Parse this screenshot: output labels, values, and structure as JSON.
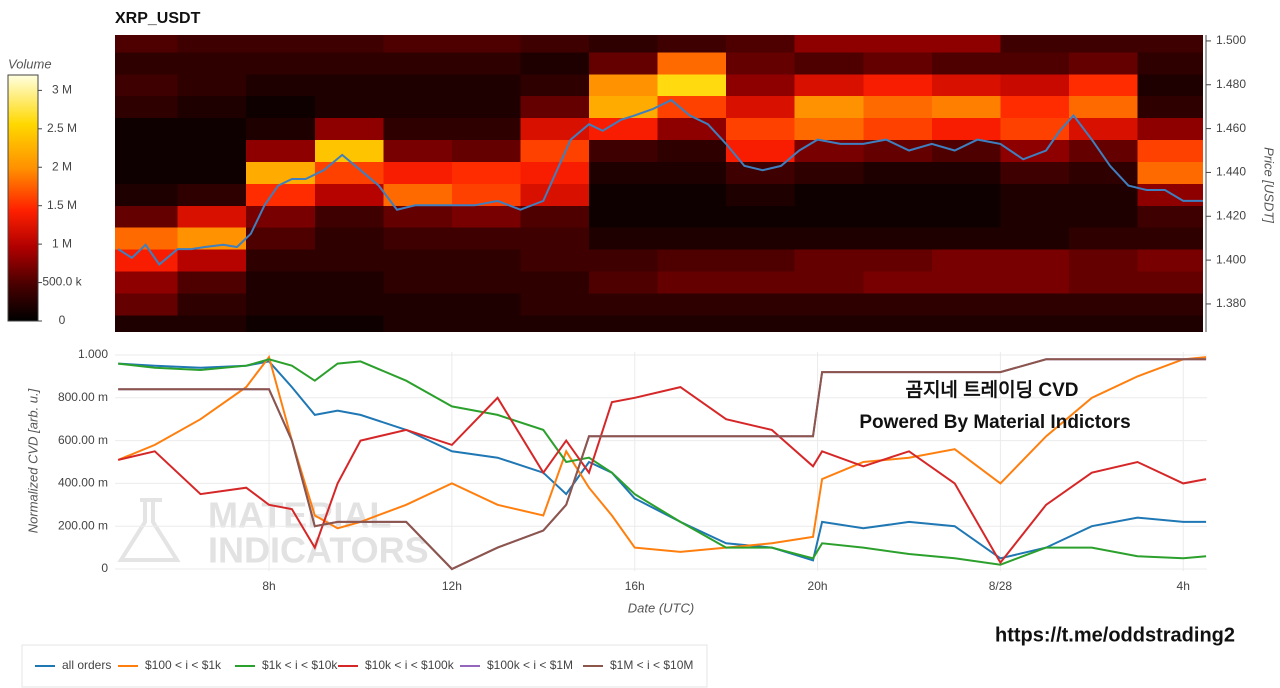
{
  "chart_data": [
    {
      "type": "heatmap",
      "title": "XRP_USDT",
      "y_title": "Price [USDT]",
      "colorbar_title": "Volume",
      "xlim": [
        4.63,
        28.52
      ],
      "ylim": [
        1.3672,
        1.5027
      ],
      "yticks": [
        {
          "value": 1.38,
          "label": "1.380"
        },
        {
          "value": 1.4,
          "label": "1.400"
        },
        {
          "value": 1.42,
          "label": "1.420"
        },
        {
          "value": 1.44,
          "label": "1.440"
        },
        {
          "value": 1.46,
          "label": "1.460"
        },
        {
          "value": 1.48,
          "label": "1.480"
        },
        {
          "value": 1.5,
          "label": "1.500"
        }
      ],
      "zlim": [
        0,
        3200000
      ],
      "zticks": [
        {
          "value": 0,
          "label": "0"
        },
        {
          "value": 500000,
          "label": "500.0 k"
        },
        {
          "value": 1000000,
          "label": "1 M"
        },
        {
          "value": 1500000,
          "label": "1.5 M"
        },
        {
          "value": 2000000,
          "label": "2 M"
        },
        {
          "value": 2500000,
          "label": "2.5 M"
        },
        {
          "value": 3000000,
          "label": "3 M"
        }
      ],
      "colorscale": [
        [
          0,
          "#000000"
        ],
        [
          0.15,
          "#4a0000"
        ],
        [
          0.3,
          "#b00000"
        ],
        [
          0.45,
          "#ff2000"
        ],
        [
          0.62,
          "#ff9000"
        ],
        [
          0.8,
          "#ffd800"
        ],
        [
          1,
          "#ffffe0"
        ]
      ],
      "xbins": [
        4.5,
        6,
        7.5,
        9,
        10.5,
        12,
        13.5,
        15,
        16.5,
        18,
        19.5,
        21,
        22.5,
        24,
        25.5,
        27,
        28.5
      ],
      "ybins": [
        1.365,
        1.375,
        1.385,
        1.395,
        1.405,
        1.415,
        1.425,
        1.435,
        1.445,
        1.455,
        1.465,
        1.475,
        1.485,
        1.495,
        1.505
      ],
      "z": [
        [
          200000.0,
          600000.0,
          800000.0,
          1400000.0,
          1800000.0,
          600000.0,
          200000.0,
          100000.0,
          100000.0,
          100000.0,
          300000.0,
          400000.0,
          300000.0,
          500000.0
        ],
        [
          200000.0,
          300000.0,
          500000.0,
          1000000.0,
          2000000.0,
          1200000.0,
          300000.0,
          100000.0,
          100000.0,
          100000.0,
          200000.0,
          300000.0,
          300000.0,
          400000.0
        ],
        [
          100000.0,
          200000.0,
          200000.0,
          300000.0,
          500000.0,
          700000.0,
          1500000.0,
          2200000.0,
          800000.0,
          200000.0,
          100000.0,
          200000.0,
          300000.0,
          400000.0
        ],
        [
          100000.0,
          200000.0,
          200000.0,
          300000.0,
          300000.0,
          400000.0,
          1000000.0,
          1600000.0,
          2400000.0,
          800000.0,
          200000.0,
          200000.0,
          300000.0,
          400000.0
        ],
        [
          200000.0,
          200000.0,
          300000.0,
          300000.0,
          400000.0,
          600000.0,
          1800000.0,
          1400000.0,
          700000.0,
          300000.0,
          200000.0,
          200000.0,
          300000.0,
          500000.0
        ],
        [
          200000.0,
          200000.0,
          300000.0,
          300000.0,
          400000.0,
          700000.0,
          1600000.0,
          1500000.0,
          600000.0,
          300000.0,
          200000.0,
          200000.0,
          300000.0,
          500000.0
        ],
        [
          200000.0,
          300000.0,
          300000.0,
          400000.0,
          400000.0,
          500000.0,
          1200000.0,
          1400000.0,
          1600000.0,
          1200000.0,
          600000.0,
          300000.0,
          200000.0,
          400000.0
        ],
        [
          200000.0,
          300000.0,
          500000.0,
          400000.0,
          200000.0,
          100000.0,
          100000.0,
          200000.0,
          400000.0,
          1400000.0,
          2200000.0,
          2000000.0,
          600000.0,
          300000.0
        ],
        [
          200000.0,
          300000.0,
          600000.0,
          500000.0,
          200000.0,
          100000.0,
          100000.0,
          200000.0,
          300000.0,
          800000.0,
          1600000.0,
          2600000.0,
          1800000.0,
          400000.0
        ],
        [
          200000.0,
          300000.0,
          600000.0,
          500000.0,
          200000.0,
          100000.0,
          200000.0,
          400000.0,
          1400000.0,
          1600000.0,
          1200000.0,
          800000.0,
          600000.0,
          500000.0
        ],
        [
          200000.0,
          300000.0,
          600000.0,
          600000.0,
          200000.0,
          100000.0,
          100000.0,
          300000.0,
          700000.0,
          1800000.0,
          2000000.0,
          1200000.0,
          500000.0,
          800000.0
        ],
        [
          200000.0,
          300000.0,
          700000.0,
          600000.0,
          200000.0,
          100000.0,
          100000.0,
          200000.0,
          600000.0,
          1600000.0,
          1800000.0,
          1400000.0,
          600000.0,
          800000.0
        ],
        [
          200000.0,
          300000.0,
          700000.0,
          700000.0,
          200000.0,
          100000.0,
          100000.0,
          200000.0,
          500000.0,
          1400000.0,
          1900000.0,
          1200000.0,
          500000.0,
          800000.0
        ],
        [
          200000.0,
          300000.0,
          700000.0,
          700000.0,
          200000.0,
          200000.0,
          200000.0,
          400000.0,
          800000.0,
          1600000.0,
          1500000.0,
          1100000.0,
          500000.0,
          400000.0
        ],
        [
          200000.0,
          300000.0,
          600000.0,
          600000.0,
          300000.0,
          200000.0,
          200000.0,
          300000.0,
          600000.0,
          1200000.0,
          1800000.0,
          1500000.0,
          600000.0,
          400000.0
        ],
        [
          200000.0,
          300000.0,
          600000.0,
          700000.0,
          300000.0,
          400000.0,
          800000.0,
          1800000.0,
          1600000.0,
          800000.0,
          300000.0,
          200000.0,
          300000.0,
          400000.0
        ]
      ],
      "price": {
        "color": "#3f7fbf",
        "x": [
          4.7,
          5,
          5.3,
          5.6,
          6,
          6.3,
          6.6,
          7,
          7.3,
          7.6,
          7.9,
          8.2,
          8.5,
          8.8,
          9.2,
          9.6,
          10,
          10.4,
          10.8,
          11.2,
          11.6,
          12,
          12.5,
          13,
          13.5,
          14,
          14.3,
          14.6,
          15,
          15.3,
          15.7,
          16,
          16.4,
          16.8,
          17.2,
          17.6,
          18,
          18.4,
          18.8,
          19.2,
          19.6,
          20,
          20.5,
          21,
          21.5,
          22,
          22.5,
          23,
          23.5,
          24,
          24.5,
          25,
          25.3,
          25.6,
          26,
          26.4,
          26.8,
          27.2,
          27.6,
          28,
          28.5
        ],
        "y": [
          1.405,
          1.401,
          1.407,
          1.398,
          1.405,
          1.405,
          1.406,
          1.407,
          1.406,
          1.412,
          1.425,
          1.434,
          1.437,
          1.437,
          1.441,
          1.448,
          1.441,
          1.434,
          1.423,
          1.425,
          1.425,
          1.425,
          1.425,
          1.427,
          1.423,
          1.427,
          1.441,
          1.455,
          1.462,
          1.459,
          1.464,
          1.466,
          1.469,
          1.473,
          1.466,
          1.462,
          1.453,
          1.443,
          1.441,
          1.443,
          1.45,
          1.455,
          1.453,
          1.453,
          1.455,
          1.45,
          1.453,
          1.45,
          1.455,
          1.453,
          1.446,
          1.45,
          1.459,
          1.466,
          1.455,
          1.443,
          1.434,
          1.432,
          1.432,
          1.427,
          1.427
        ]
      }
    },
    {
      "type": "line",
      "x_title": "Date (UTC)",
      "y_title": "Normalized CVD [arb. u.]",
      "xlim": [
        4.63,
        28.52
      ],
      "ylim": [
        0,
        1
      ],
      "xticks": [
        {
          "value": 8,
          "label": "8h"
        },
        {
          "value": 12,
          "label": "12h"
        },
        {
          "value": 16,
          "label": "16h"
        },
        {
          "value": 20,
          "label": "20h"
        },
        {
          "value": 24,
          "label": "8/28"
        },
        {
          "value": 28,
          "label": "4h"
        }
      ],
      "yticks": [
        {
          "value": 0,
          "label": "0"
        },
        {
          "value": 0.2,
          "label": "200.00 m"
        },
        {
          "value": 0.4,
          "label": "400.00 m"
        },
        {
          "value": 0.6,
          "label": "600.00 m"
        },
        {
          "value": 0.8,
          "label": "800.00 m"
        },
        {
          "value": 1,
          "label": "1.000"
        }
      ],
      "grid": true,
      "annotations": [
        "곰지네 트레이딩 CVD",
        "Powered By Material Indictors"
      ],
      "x": [
        4.7,
        5.5,
        6.5,
        7.5,
        8,
        8.5,
        9,
        9.5,
        10,
        11,
        12,
        13,
        14,
        14.5,
        15,
        15.5,
        16,
        17,
        18,
        19,
        19.9,
        20.1,
        21,
        22,
        23,
        24,
        25,
        26,
        27,
        28,
        28.5
      ],
      "series": [
        {
          "name": "all orders",
          "color": "#1f77b4",
          "values": [
            0.96,
            0.95,
            0.94,
            0.95,
            0.97,
            0.85,
            0.72,
            0.74,
            0.72,
            0.65,
            0.55,
            0.52,
            0.45,
            0.35,
            0.5,
            0.45,
            0.33,
            0.22,
            0.12,
            0.1,
            0.04,
            0.22,
            0.19,
            0.22,
            0.2,
            0.05,
            0.1,
            0.2,
            0.24,
            0.22,
            0.22
          ]
        },
        {
          "name": "$100 < i < $1k",
          "color": "#ff7f0e",
          "values": [
            0.51,
            0.58,
            0.7,
            0.85,
            0.99,
            0.6,
            0.25,
            0.19,
            0.22,
            0.3,
            0.4,
            0.3,
            0.25,
            0.55,
            0.38,
            0.25,
            0.1,
            0.08,
            0.1,
            0.12,
            0.15,
            0.42,
            0.5,
            0.52,
            0.56,
            0.4,
            0.62,
            0.8,
            0.9,
            0.98,
            0.99
          ]
        },
        {
          "name": "$1k < i < $10k",
          "color": "#2ca02c",
          "values": [
            0.96,
            0.94,
            0.93,
            0.95,
            0.98,
            0.95,
            0.88,
            0.96,
            0.97,
            0.88,
            0.76,
            0.72,
            0.65,
            0.5,
            0.52,
            0.45,
            0.35,
            0.22,
            0.1,
            0.1,
            0.05,
            0.12,
            0.1,
            0.07,
            0.05,
            0.02,
            0.1,
            0.1,
            0.06,
            0.05,
            0.06
          ]
        },
        {
          "name": "$10k < i < $100k",
          "color": "#d62728",
          "values": [
            0.51,
            0.55,
            0.35,
            0.38,
            0.3,
            0.28,
            0.1,
            0.4,
            0.6,
            0.65,
            0.58,
            0.8,
            0.45,
            0.6,
            0.45,
            0.78,
            0.8,
            0.85,
            0.7,
            0.65,
            0.48,
            0.55,
            0.48,
            0.55,
            0.4,
            0.03,
            0.3,
            0.45,
            0.5,
            0.4,
            0.42
          ]
        },
        {
          "name": "$100k < i < $1M",
          "color": "#9467bd",
          "values": [
            0.84,
            0.84,
            0.84,
            0.84,
            0.84,
            0.6,
            0.2,
            0.22,
            0.22,
            0.22,
            0,
            0.1,
            0.18,
            0.3,
            0.62,
            0.62,
            0.62,
            0.62,
            0.62,
            0.62,
            0.62,
            0.92,
            0.92,
            0.92,
            0.92,
            0.92,
            0.98,
            0.98,
            0.98,
            0.98,
            0.98
          ]
        },
        {
          "name": "$1M < i < $10M",
          "color": "#8c564b",
          "values": [
            0.84,
            0.84,
            0.84,
            0.84,
            0.84,
            0.6,
            0.2,
            0.22,
            0.22,
            0.22,
            0,
            0.1,
            0.18,
            0.3,
            0.62,
            0.62,
            0.62,
            0.62,
            0.62,
            0.62,
            0.62,
            0.92,
            0.92,
            0.92,
            0.92,
            0.92,
            0.98,
            0.98,
            0.98,
            0.98,
            0.98
          ]
        }
      ]
    }
  ],
  "watermark": [
    "MATERIAL",
    "INDICATORS"
  ],
  "url": "https://t.me/oddstrading2"
}
